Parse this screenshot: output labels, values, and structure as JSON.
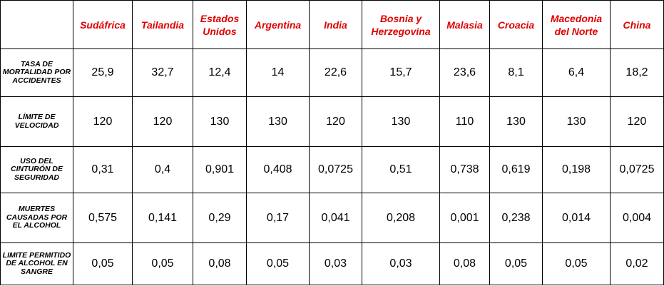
{
  "table": {
    "header": [
      "Sudáfrica",
      "Tailandia",
      "Estados Unidos",
      "Argentina",
      "India",
      "Bosnia y Herzegovina",
      "Malasia",
      "Croacia",
      "Macedonia del Norte",
      "China"
    ],
    "rows": [
      {
        "label": "TASA DE MORTALIDAD POR ACCIDENTES",
        "values": [
          "25,9",
          "32,7",
          "12,4",
          "14",
          "22,6",
          "15,7",
          "23,6",
          "8,1",
          "6,4",
          "18,2"
        ]
      },
      {
        "label": "LÍMITE DE VELOCIDAD",
        "values": [
          "120",
          "120",
          "130",
          "130",
          "120",
          "130",
          "110",
          "130",
          "130",
          "120"
        ]
      },
      {
        "label": "USO DEL CINTURÓN DE SEGURIDAD",
        "values": [
          "0,31",
          "0,4",
          "0,901",
          "0,408",
          "0,0725",
          "0,51",
          "0,738",
          "0,619",
          "0,198",
          "0,0725"
        ]
      },
      {
        "label": "MUERTES CAUSADAS POR EL ALCOHOL",
        "values": [
          "0,575",
          "0,141",
          "0,29",
          "0,17",
          "0,041",
          "0,208",
          "0,001",
          "0,238",
          "0,014",
          "0,004"
        ]
      },
      {
        "label": "LIMITE PERMITIDO DE ALCOHOL EN SANGRE",
        "values": [
          "0,05",
          "0,05",
          "0,08",
          "0,05",
          "0,03",
          "0,03",
          "0,08",
          "0,05",
          "0,05",
          "0,02"
        ]
      }
    ]
  }
}
